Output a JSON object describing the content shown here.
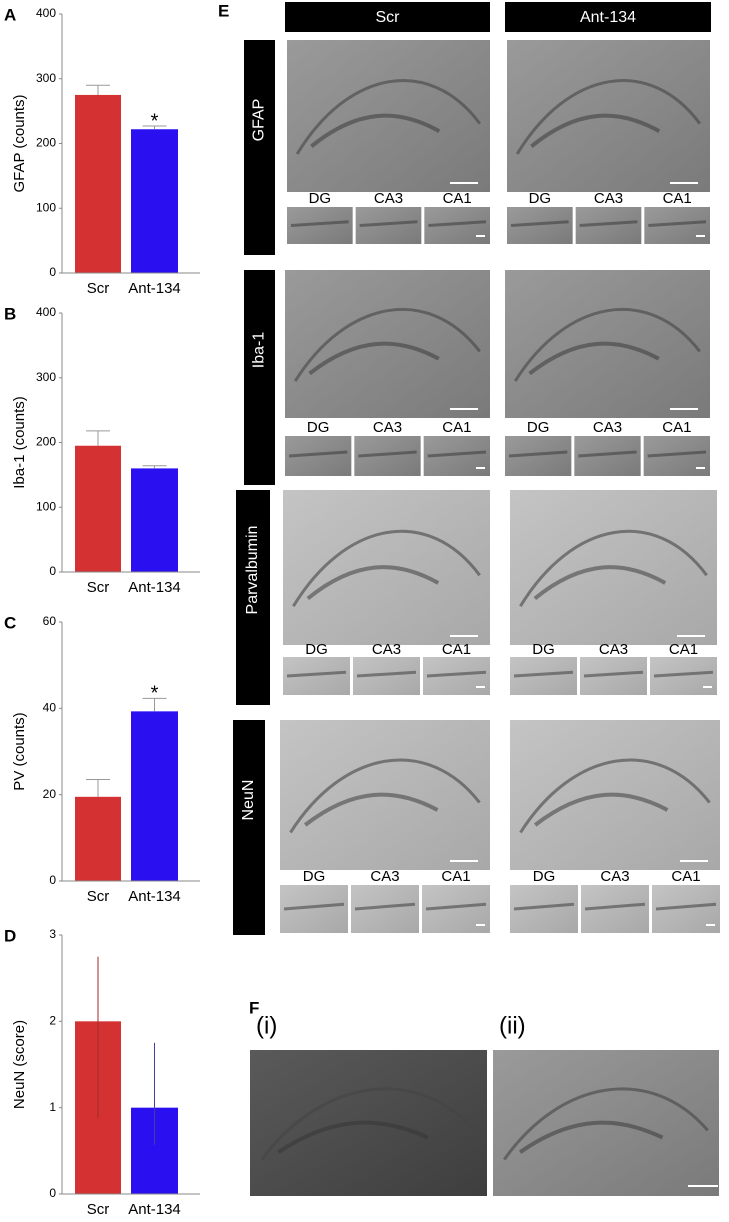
{
  "chart_data": [
    {
      "type": "bar",
      "label": "A",
      "ylabel": "GFAP (counts)",
      "categories": [
        "Scr",
        "Ant-134"
      ],
      "values": [
        275,
        222
      ],
      "errors": [
        15,
        5
      ],
      "colors": [
        "#d43232",
        "#2a10f0"
      ],
      "ylim": [
        0,
        400
      ],
      "yticks": [
        0,
        100,
        200,
        300,
        400
      ],
      "annotations": [
        {
          "text": "*",
          "category": "Ant-134"
        }
      ]
    },
    {
      "type": "bar",
      "label": "B",
      "ylabel": "Iba-1 (counts)",
      "categories": [
        "Scr",
        "Ant-134"
      ],
      "values": [
        195,
        160
      ],
      "errors": [
        23,
        4
      ],
      "colors": [
        "#d43232",
        "#2a10f0"
      ],
      "ylim": [
        0,
        400
      ],
      "yticks": [
        0,
        100,
        200,
        300,
        400
      ],
      "annotations": []
    },
    {
      "type": "bar",
      "label": "C",
      "ylabel": "PV (counts)",
      "categories": [
        "Scr",
        "Ant-134"
      ],
      "values": [
        19.5,
        39.3
      ],
      "errors": [
        4,
        3
      ],
      "colors": [
        "#d43232",
        "#2a10f0"
      ],
      "ylim": [
        0,
        60
      ],
      "yticks": [
        0,
        20,
        40,
        60
      ],
      "annotations": [
        {
          "text": "*",
          "category": "Ant-134"
        }
      ]
    },
    {
      "type": "bar",
      "label": "D",
      "ylabel": "NeuN (score)",
      "categories": [
        "Scr",
        "Ant-134"
      ],
      "values": [
        2,
        1
      ],
      "errors": [
        0.75,
        0.75
      ],
      "errors_lower": [
        1.12,
        0.43
      ],
      "colors": [
        "#d43232",
        "#2a10f0"
      ],
      "ylim": [
        0,
        3
      ],
      "yticks": [
        0,
        1,
        2,
        3
      ],
      "annotations": []
    }
  ],
  "panel_e": {
    "label": "E",
    "columns": [
      "Scr",
      "Ant-134"
    ],
    "rows": [
      {
        "name": "GFAP",
        "subregions": [
          "DG",
          "CA3",
          "CA1"
        ]
      },
      {
        "name": "Iba-1",
        "subregions": [
          "DG",
          "CA3",
          "CA1"
        ]
      },
      {
        "name": "Parvalbumin",
        "subregions": [
          "DG",
          "CA3",
          "CA1"
        ]
      },
      {
        "name": "NeuN",
        "subregions": [
          "DG",
          "CA3",
          "CA1"
        ]
      }
    ]
  },
  "panel_f": {
    "label": "F",
    "images": [
      "(i)",
      "(ii)"
    ]
  }
}
